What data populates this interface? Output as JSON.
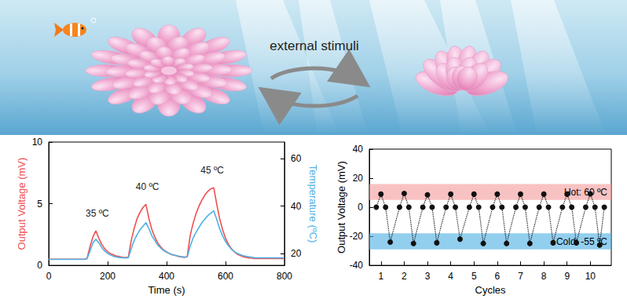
{
  "banner": {
    "text": "external stimuli"
  },
  "chart_data": [
    {
      "type": "line",
      "xlabel": "Time (s)",
      "ylabel": "Output Voltage (mV)",
      "y2label": "Temperature (ºC)",
      "xlim": [
        0,
        800
      ],
      "xticks": [
        0,
        200,
        400,
        600,
        800
      ],
      "ylim": [
        0,
        10
      ],
      "yticks": [
        0,
        5,
        10
      ],
      "y2lim": [
        15,
        67
      ],
      "y2ticks": [
        20,
        40,
        60
      ],
      "x": [
        0,
        10,
        20,
        30,
        40,
        50,
        60,
        70,
        80,
        90,
        100,
        110,
        120,
        130,
        140,
        150,
        160,
        170,
        180,
        190,
        200,
        210,
        220,
        230,
        240,
        250,
        260,
        270,
        280,
        290,
        300,
        310,
        320,
        330,
        340,
        350,
        360,
        370,
        380,
        390,
        400,
        410,
        420,
        430,
        440,
        450,
        460,
        470,
        480,
        490,
        500,
        510,
        520,
        530,
        540,
        550,
        560,
        570,
        580,
        590,
        600,
        610,
        620,
        630,
        640,
        650,
        660,
        670,
        680,
        690,
        700,
        710,
        720,
        730,
        740,
        750,
        760,
        770,
        780,
        790,
        800
      ],
      "series": [
        {
          "color": "#ef4f4f",
          "marker": "none",
          "line_style": "solid",
          "values": [
            0.5,
            0.5,
            0.5,
            0.5,
            0.5,
            0.5,
            0.5,
            0.5,
            0.5,
            0.5,
            0.5,
            0.5,
            0.5,
            0.55,
            1.5,
            2.3,
            2.8,
            2.2,
            1.7,
            1.35,
            1.1,
            0.95,
            0.85,
            0.75,
            0.7,
            0.65,
            0.62,
            0.65,
            2.0,
            3.0,
            3.8,
            4.3,
            4.7,
            4.95,
            3.8,
            2.9,
            2.3,
            1.8,
            1.5,
            1.25,
            1.1,
            0.95,
            0.85,
            0.8,
            0.72,
            0.68,
            0.65,
            0.7,
            2.4,
            3.4,
            4.2,
            4.8,
            5.3,
            5.7,
            6.0,
            6.2,
            6.3,
            5.0,
            3.8,
            2.9,
            2.2,
            1.7,
            1.35,
            1.1,
            0.9,
            0.8,
            0.7,
            0.65,
            0.6,
            0.58,
            0.55,
            0.55,
            0.55,
            0.55,
            0.55,
            0.55,
            0.55,
            0.55,
            0.55,
            0.55,
            0.55
          ]
        },
        {
          "color": "#4db2e6",
          "marker": "none",
          "line_style": "solid",
          "axis": "y2",
          "values": [
            17.5,
            17.5,
            17.5,
            17.5,
            17.5,
            17.5,
            17.5,
            17.5,
            17.5,
            17.5,
            17.5,
            17.5,
            17.5,
            17.8,
            21,
            24.5,
            26,
            24.5,
            22.5,
            21,
            20,
            19.3,
            18.8,
            18.5,
            18.3,
            18.2,
            18.1,
            18.2,
            22,
            25.5,
            28,
            30,
            31.5,
            33,
            30.5,
            27.5,
            25.5,
            23.5,
            22.3,
            21.3,
            20.5,
            20,
            19.5,
            19.2,
            18.9,
            18.7,
            18.5,
            18.6,
            23,
            26.5,
            29,
            31,
            33,
            34.5,
            36,
            37,
            38,
            34.5,
            30.5,
            27.5,
            25,
            23.2,
            21.8,
            20.8,
            20,
            19.5,
            19.1,
            18.8,
            18.6,
            18.4,
            18.2,
            18.2,
            18.2,
            18.2,
            18.2,
            18.2,
            18.2,
            18.2,
            18.2,
            18.2,
            18.2
          ]
        }
      ],
      "annotations": [
        {
          "text": "35 ºC",
          "x": 165,
          "y": 3.5
        },
        {
          "text": "40 ºC",
          "x": 335,
          "y": 5.7
        },
        {
          "text": "45 ºC",
          "x": 555,
          "y": 7.0
        }
      ]
    },
    {
      "type": "line",
      "xlabel": "Cycles",
      "ylabel": "Output Voltage (mV)",
      "xlim": [
        0.5,
        10.9
      ],
      "xticks": [
        1,
        2,
        3,
        4,
        5,
        6,
        7,
        8,
        9,
        10
      ],
      "ylim": [
        -40,
        40
      ],
      "yticks": [
        -40,
        -20,
        0,
        20,
        40
      ],
      "x": [
        0.8,
        1,
        1.2,
        1.4,
        1.8,
        2,
        2.2,
        2.4,
        2.8,
        3,
        3.2,
        3.4,
        3.8,
        4,
        4.2,
        4.4,
        4.8,
        5,
        5.2,
        5.4,
        5.8,
        6,
        6.2,
        6.4,
        6.8,
        7,
        7.2,
        7.4,
        7.8,
        8,
        8.2,
        8.4,
        8.8,
        9,
        9.2,
        9.4,
        9.8,
        10,
        10.2,
        10.4,
        10.6
      ],
      "series": [
        {
          "color": "#111111",
          "marker": "circle",
          "line_style": "dotted",
          "values": [
            0,
            9,
            0,
            -24,
            0,
            9.5,
            0,
            -25,
            0,
            8.5,
            0,
            -24.5,
            0,
            9,
            0,
            -22,
            0,
            9,
            0,
            -25,
            0,
            9,
            0,
            -25,
            0,
            9,
            0,
            -25,
            0,
            9,
            0,
            -24.5,
            0,
            9,
            0,
            -24.5,
            0,
            9.2,
            0,
            -26,
            0
          ]
        }
      ],
      "bands": [
        {
          "label": "Hot: 60 ºC",
          "range": [
            5,
            16
          ],
          "color": "#f59a9a"
        },
        {
          "label": "Cold: -55 ºC",
          "range": [
            -29,
            -18
          ],
          "color": "#4aaee3"
        }
      ]
    }
  ]
}
